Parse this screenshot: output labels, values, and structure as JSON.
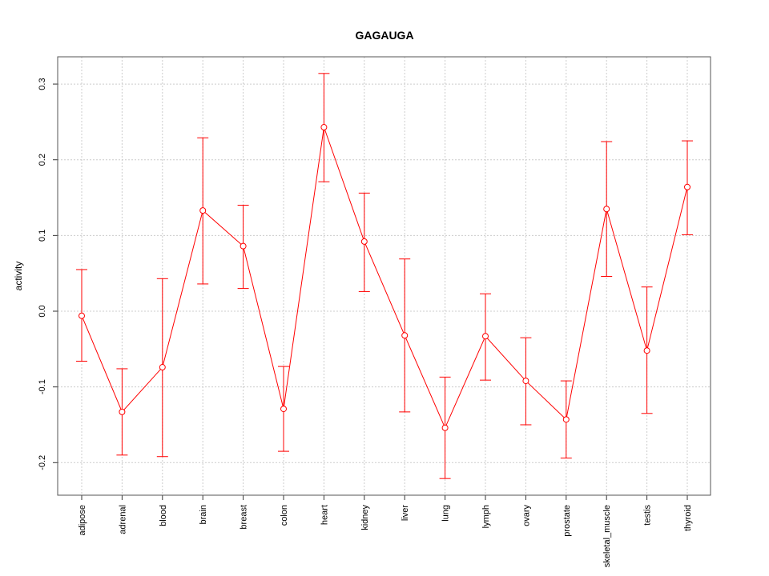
{
  "chart_data": {
    "type": "line",
    "title": "GAGAUGA",
    "xlabel": "",
    "ylabel": "activity",
    "ylim": [
      -0.243,
      0.336
    ],
    "yticks": [
      -0.2,
      -0.1,
      0.0,
      0.1,
      0.2,
      0.3
    ],
    "ytick_labels": [
      "-0.2",
      "-0.1",
      "0.0",
      "0.1",
      "0.2",
      "0.3"
    ],
    "grid": true,
    "color": "#ff0000",
    "categories": [
      "adipose",
      "adrenal",
      "blood",
      "brain",
      "breast",
      "colon",
      "heart",
      "kidney",
      "liver",
      "lung",
      "lymph",
      "ovary",
      "prostate",
      "skeletal_muscle",
      "testis",
      "thyroid"
    ],
    "values": [
      -0.006,
      -0.133,
      -0.074,
      0.133,
      0.086,
      -0.129,
      0.243,
      0.092,
      -0.032,
      -0.154,
      -0.033,
      -0.092,
      -0.143,
      0.135,
      -0.052,
      0.164
    ],
    "upper": [
      0.055,
      -0.076,
      0.043,
      0.229,
      0.14,
      -0.073,
      0.314,
      0.156,
      0.069,
      -0.087,
      0.023,
      -0.035,
      -0.092,
      0.224,
      0.032,
      0.225
    ],
    "lower": [
      -0.066,
      -0.19,
      -0.192,
      0.036,
      0.03,
      -0.185,
      0.171,
      0.026,
      -0.133,
      -0.221,
      -0.091,
      -0.15,
      -0.194,
      0.046,
      -0.135,
      0.101
    ]
  }
}
